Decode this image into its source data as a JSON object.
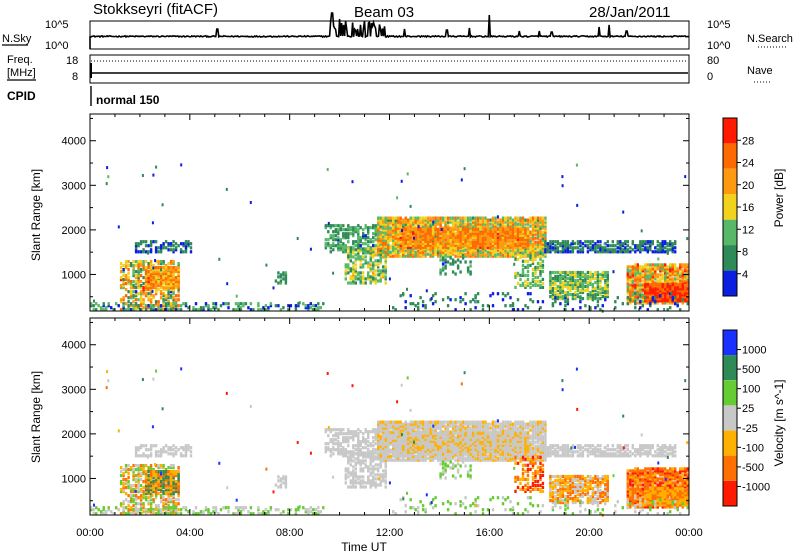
{
  "header": {
    "title": "Stokkseyri (fitACF)",
    "beam": "Beam 03",
    "date": "28/Jan/2011"
  },
  "strip_labels": {
    "nsky": "N.Sky",
    "nsearch": "N.Search",
    "freq_line1": "Freq.",
    "freq_line2": "[MHz]",
    "nave": "Nave",
    "cpid": "CPID",
    "cpid_value": "normal 150"
  },
  "strip_ticks": {
    "nsky_top": "10^5",
    "nsky_bottom": "10^0",
    "nsearch_top": "10^5",
    "nsearch_bottom": "10^0",
    "freq_top": "18",
    "freq_bottom": "8",
    "nave_top": "80",
    "nave_bottom": "0"
  },
  "colors": {
    "power": [
      "#0a1fe0",
      "#2e8a57",
      "#58b868",
      "#f2d31c",
      "#ff9a10",
      "#ff6a00",
      "#ff1a00"
    ],
    "velocity": [
      "#1a30ff",
      "#2e8b57",
      "#66cc33",
      "#c8c8c8",
      "#ffb000",
      "#ff7000",
      "#ff1a00"
    ]
  },
  "chart_data": [
    {
      "type": "heatmap",
      "name": "power",
      "ylabel": "Slant Range [km]",
      "ylim": [
        180,
        4600
      ],
      "xlim_hours": [
        0,
        24
      ],
      "yticks": [
        1000,
        2000,
        3000,
        4000
      ],
      "colorbar_label": "Power [dB]",
      "colorbar_ticks": [
        "4",
        "8",
        "12",
        "16",
        "20",
        "24",
        "28"
      ],
      "colorbar_range": [
        0,
        30
      ]
    },
    {
      "type": "heatmap",
      "name": "velocity",
      "ylabel": "Slant Range [km]",
      "xlabel": "Time UT",
      "ylim": [
        180,
        4600
      ],
      "xlim_hours": [
        0,
        24
      ],
      "yticks": [
        1000,
        2000,
        3000,
        4000
      ],
      "xticks": [
        "00:00",
        "04:00",
        "08:00",
        "12:00",
        "16:00",
        "20:00",
        "00:00"
      ],
      "colorbar_label": "Velocity [m s^-1]",
      "colorbar_ticks": [
        "1000",
        "500",
        "100",
        "25",
        "-25",
        "-100",
        "-500",
        "-1000"
      ]
    }
  ]
}
